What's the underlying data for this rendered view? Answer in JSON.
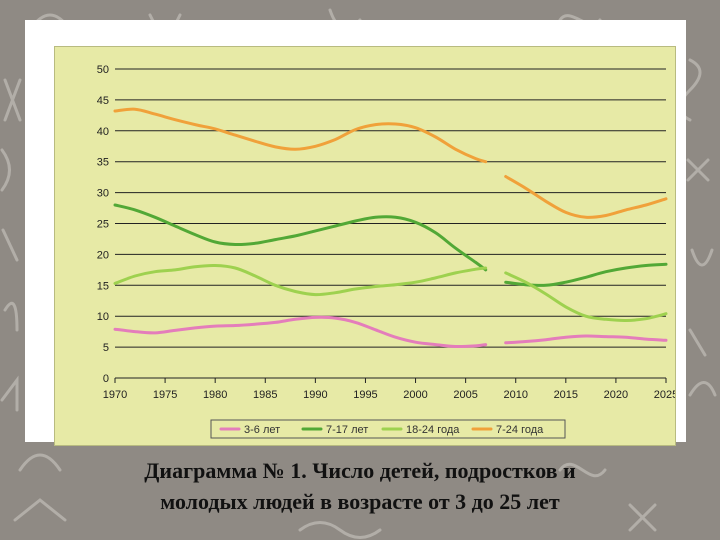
{
  "caption": {
    "line1": "Диаграмма № 1. Число детей, подростков и",
    "line2": "молодых людей в возрасте от 3 до 25 лет"
  },
  "colors": {
    "s1": "#e47dbb",
    "s2": "#52a836",
    "s3": "#9ed14f",
    "s4": "#f0a13a",
    "grid": "#222222",
    "frame": "#e7eaa6",
    "background": "#8f8a84"
  },
  "chart_data": {
    "type": "line",
    "title": "",
    "xlabel": "",
    "ylabel": "",
    "xlim": [
      1970,
      2025
    ],
    "ylim": [
      0,
      50
    ],
    "x_ticks": [
      1970,
      1975,
      1980,
      1985,
      1990,
      1995,
      2000,
      2005,
      2010,
      2015,
      2020,
      2025
    ],
    "y_ticks": [
      0,
      5,
      10,
      15,
      20,
      25,
      30,
      35,
      40,
      45,
      50
    ],
    "grid": "horizontal",
    "legend_position": "bottom",
    "series": [
      {
        "name": "3-6 лет",
        "color": "#e47dbb",
        "segments": [
          [
            [
              1970,
              7.9
            ],
            [
              1972,
              7.5
            ],
            [
              1974,
              7.3
            ],
            [
              1976,
              7.7
            ],
            [
              1978,
              8.1
            ],
            [
              1980,
              8.4
            ],
            [
              1982,
              8.5
            ],
            [
              1984,
              8.7
            ],
            [
              1986,
              9.0
            ],
            [
              1988,
              9.5
            ],
            [
              1990,
              9.8
            ],
            [
              1992,
              9.7
            ],
            [
              1994,
              9.0
            ],
            [
              1996,
              7.8
            ],
            [
              1998,
              6.6
            ],
            [
              2000,
              5.8
            ],
            [
              2002,
              5.4
            ],
            [
              2004,
              5.1
            ],
            [
              2006,
              5.2
            ],
            [
              2007,
              5.4
            ]
          ],
          [
            [
              2009,
              5.7
            ],
            [
              2011,
              5.9
            ],
            [
              2013,
              6.2
            ],
            [
              2015,
              6.6
            ],
            [
              2017,
              6.8
            ],
            [
              2019,
              6.7
            ],
            [
              2021,
              6.6
            ],
            [
              2023,
              6.3
            ],
            [
              2025,
              6.1
            ]
          ]
        ]
      },
      {
        "name": "7-17 лет",
        "color": "#52a836",
        "segments": [
          [
            [
              1970,
              28.0
            ],
            [
              1972,
              27.2
            ],
            [
              1974,
              26.0
            ],
            [
              1976,
              24.6
            ],
            [
              1978,
              23.2
            ],
            [
              1980,
              22.0
            ],
            [
              1982,
              21.6
            ],
            [
              1984,
              21.8
            ],
            [
              1986,
              22.4
            ],
            [
              1988,
              23.0
            ],
            [
              1990,
              23.8
            ],
            [
              1992,
              24.6
            ],
            [
              1994,
              25.4
            ],
            [
              1996,
              26.0
            ],
            [
              1998,
              26.0
            ],
            [
              2000,
              25.2
            ],
            [
              2002,
              23.5
            ],
            [
              2004,
              21.0
            ],
            [
              2006,
              18.7
            ],
            [
              2007,
              17.5
            ]
          ],
          [
            [
              2009,
              15.5
            ],
            [
              2011,
              15.1
            ],
            [
              2013,
              15.0
            ],
            [
              2015,
              15.5
            ],
            [
              2017,
              16.3
            ],
            [
              2019,
              17.2
            ],
            [
              2021,
              17.8
            ],
            [
              2023,
              18.2
            ],
            [
              2025,
              18.4
            ]
          ]
        ]
      },
      {
        "name": "18-24 года",
        "color": "#9ed14f",
        "segments": [
          [
            [
              1970,
              15.3
            ],
            [
              1972,
              16.5
            ],
            [
              1974,
              17.2
            ],
            [
              1976,
              17.5
            ],
            [
              1978,
              18.0
            ],
            [
              1980,
              18.2
            ],
            [
              1982,
              17.8
            ],
            [
              1984,
              16.5
            ],
            [
              1986,
              15.0
            ],
            [
              1988,
              14.0
            ],
            [
              1990,
              13.5
            ],
            [
              1992,
              13.8
            ],
            [
              1994,
              14.4
            ],
            [
              1996,
              14.8
            ],
            [
              1998,
              15.1
            ],
            [
              2000,
              15.5
            ],
            [
              2002,
              16.2
            ],
            [
              2004,
              17.0
            ],
            [
              2006,
              17.6
            ],
            [
              2007,
              17.8
            ]
          ],
          [
            [
              2009,
              17.0
            ],
            [
              2011,
              15.5
            ],
            [
              2013,
              13.6
            ],
            [
              2015,
              11.5
            ],
            [
              2017,
              10.0
            ],
            [
              2019,
              9.5
            ],
            [
              2021,
              9.3
            ],
            [
              2023,
              9.6
            ],
            [
              2025,
              10.4
            ]
          ]
        ]
      },
      {
        "name": "7-24 года",
        "color": "#f0a13a",
        "segments": [
          [
            [
              1970,
              43.2
            ],
            [
              1972,
              43.5
            ],
            [
              1974,
              42.7
            ],
            [
              1976,
              41.8
            ],
            [
              1978,
              41.0
            ],
            [
              1980,
              40.3
            ],
            [
              1982,
              39.3
            ],
            [
              1984,
              38.3
            ],
            [
              1986,
              37.4
            ],
            [
              1988,
              37.0
            ],
            [
              1990,
              37.5
            ],
            [
              1992,
              38.6
            ],
            [
              1994,
              40.2
            ],
            [
              1996,
              41.0
            ],
            [
              1998,
              41.1
            ],
            [
              2000,
              40.5
            ],
            [
              2002,
              39.0
            ],
            [
              2004,
              37.0
            ],
            [
              2006,
              35.5
            ],
            [
              2007,
              35.0
            ]
          ],
          [
            [
              2009,
              32.6
            ],
            [
              2011,
              30.7
            ],
            [
              2013,
              28.6
            ],
            [
              2015,
              26.8
            ],
            [
              2017,
              26.0
            ],
            [
              2019,
              26.3
            ],
            [
              2021,
              27.2
            ],
            [
              2023,
              28.0
            ],
            [
              2025,
              29.0
            ]
          ]
        ]
      }
    ]
  }
}
